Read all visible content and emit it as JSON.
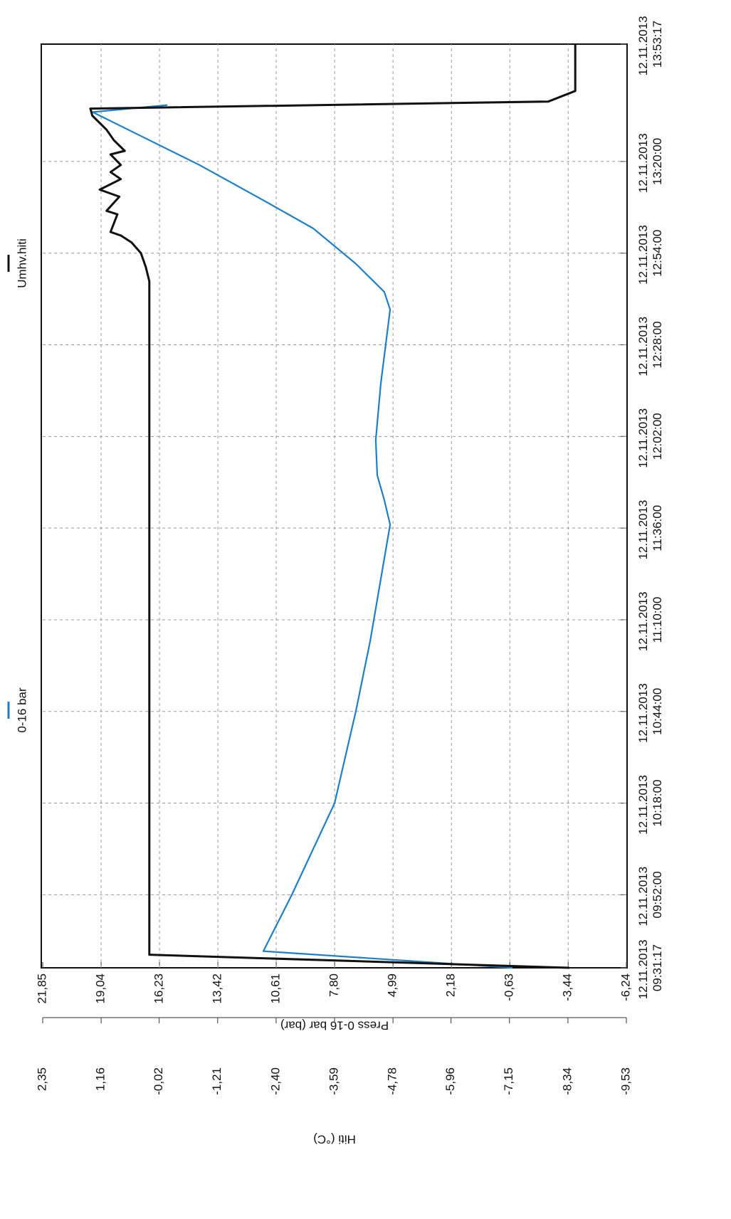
{
  "chart_data": {
    "type": "line",
    "ylabel": "Press 0-16 bar (bar)",
    "y2label": "Hiti (°C)",
    "xlim": [
      "12.11.2013 09:31:17",
      "12.11.2013 13:53:17"
    ],
    "xticks": [
      "12.11.2013 09:31:17",
      "12.11.2013 09:52:00",
      "12.11.2013 10:18:00",
      "12.11.2013 10:44:00",
      "12.11.2013 11:10:00",
      "12.11.2013 11:36:00",
      "12.11.2013 12:02:00",
      "12.11.2013 12:28:00",
      "12.11.2013 12:54:00",
      "12.11.2013 13:20:00",
      "12.11.2013 13:53:17"
    ],
    "ylim": [
      -6.24,
      21.85
    ],
    "yticks": [
      {
        "value": 21.85,
        "label": "21,85"
      },
      {
        "value": 19.04,
        "label": "19,04"
      },
      {
        "value": 16.23,
        "label": "16,23"
      },
      {
        "value": 13.42,
        "label": "13,42"
      },
      {
        "value": 10.61,
        "label": "10,61"
      },
      {
        "value": 7.8,
        "label": "7,80"
      },
      {
        "value": 4.99,
        "label": "4,99"
      },
      {
        "value": 2.18,
        "label": "2,18"
      },
      {
        "value": -0.63,
        "label": "-0,63"
      },
      {
        "value": -3.44,
        "label": "-3,44"
      },
      {
        "value": -6.24,
        "label": "-6,24"
      }
    ],
    "y2lim": [
      -9.53,
      2.35
    ],
    "y2ticks": [
      {
        "value": 2.35,
        "label": "2,35"
      },
      {
        "value": 1.16,
        "label": "1,16"
      },
      {
        "value": -0.02,
        "label": "-0,02"
      },
      {
        "value": -1.21,
        "label": "-1,21"
      },
      {
        "value": -2.4,
        "label": "-2,40"
      },
      {
        "value": -3.59,
        "label": "-3,59"
      },
      {
        "value": -4.78,
        "label": "-4,78"
      },
      {
        "value": -5.96,
        "label": "-5,96"
      },
      {
        "value": -7.15,
        "label": "-7,15"
      },
      {
        "value": -8.34,
        "label": "-8,34"
      },
      {
        "value": -9.53,
        "label": "-9,53"
      }
    ],
    "grid": true,
    "legend": "top",
    "series": [
      {
        "name": "0-16 bar",
        "color": "#1f7fc6",
        "x": [
          "12.11.2013 09:31:17",
          "12.11.2013 09:36:00",
          "12.11.2013 09:52:00",
          "12.11.2013 10:18:00",
          "12.11.2013 10:44:00",
          "12.11.2013 11:04:00",
          "12.11.2013 11:37:00",
          "12.11.2013 11:44:00",
          "12.11.2013 11:51:00",
          "12.11.2013 12:01:00",
          "12.11.2013 12:17:00",
          "12.11.2013 12:38:00",
          "12.11.2013 12:43:00",
          "12.11.2013 12:51:00",
          "12.11.2013 13:01:00",
          "12.11.2013 13:09:00",
          "12.11.2013 13:19:00",
          "12.11.2013 13:27:00",
          "12.11.2013 13:34:00",
          "12.11.2013 13:36:00"
        ],
        "values": [
          -0.76,
          11.23,
          9.86,
          7.8,
          6.78,
          6.09,
          5.13,
          5.41,
          5.75,
          5.82,
          5.58,
          5.13,
          5.41,
          6.78,
          8.83,
          11.23,
          14.31,
          17.05,
          19.45,
          15.85
        ]
      },
      {
        "name": "Umhv.hiti",
        "color": "#111111",
        "axis": "y2",
        "x": [
          "12.11.2013 09:31:17",
          "12.11.2013 09:35:00",
          "12.11.2013 12:46:00",
          "12.11.2013 12:50:00",
          "12.11.2013 12:54:00",
          "12.11.2013 12:57:00",
          "12.11.2013 12:59:00",
          "12.11.2013 13:00:00",
          "12.11.2013 13:05:00",
          "12.11.2013 13:06:00",
          "12.11.2013 13:10:00",
          "12.11.2013 13:12:00",
          "12.11.2013 13:15:00",
          "12.11.2013 13:17:00",
          "12.11.2013 13:19:00",
          "12.11.2013 13:22:00",
          "12.11.2013 13:23:00",
          "12.11.2013 13:26:00",
          "12.11.2013 13:29:00",
          "12.11.2013 13:33:00",
          "12.11.2013 13:35:00",
          "12.11.2013 13:37:00",
          "12.11.2013 13:40:00",
          "12.11.2013 13:53:17"
        ],
        "values": [
          -8.37,
          0.18,
          0.18,
          0.25,
          0.35,
          0.54,
          0.76,
          0.97,
          0.83,
          1.05,
          0.79,
          1.19,
          0.76,
          0.97,
          0.76,
          0.97,
          0.68,
          0.9,
          1.05,
          1.34,
          1.38,
          -7.94,
          -8.49,
          -8.49
        ]
      }
    ]
  }
}
